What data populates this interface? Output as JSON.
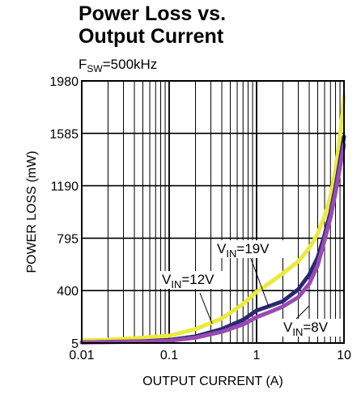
{
  "chart_data": {
    "type": "line",
    "title_lines": [
      "Power Loss vs.",
      "Output Current"
    ],
    "subtitle": {
      "prefix": "F",
      "subscript": "SW",
      "suffix": "=500kHz"
    },
    "xlabel": "OUTPUT CURRENT (A)",
    "ylabel": "POWER LOSS (mW)",
    "x_scale": "log",
    "xlim": [
      0.01,
      10
    ],
    "ylim": [
      5,
      1980
    ],
    "x_ticks": [
      {
        "value": 0.01,
        "label": "0.01"
      },
      {
        "value": 0.1,
        "label": "0.1"
      },
      {
        "value": 1,
        "label": "1"
      },
      {
        "value": 10,
        "label": "10"
      }
    ],
    "y_ticks": [
      {
        "value": 5,
        "label": "5"
      },
      {
        "value": 400,
        "label": "400"
      },
      {
        "value": 795,
        "label": "795"
      },
      {
        "value": 1190,
        "label": "1190"
      },
      {
        "value": 1585,
        "label": "1585"
      },
      {
        "value": 1980,
        "label": "1980"
      }
    ],
    "grid": true,
    "series": [
      {
        "name": "V_IN=19V",
        "label": {
          "main": "V",
          "sub": "IN",
          "rest": "=19V"
        },
        "color": "#eaea3a",
        "x": [
          0.01,
          0.02,
          0.05,
          0.1,
          0.2,
          0.4,
          0.7,
          1.0,
          1.5,
          2.0,
          3.0,
          4.0,
          5.0,
          6.0,
          7.0,
          8.0,
          9.0,
          10.0
        ],
        "y": [
          25,
          30,
          45,
          60,
          110,
          190,
          300,
          390,
          470,
          530,
          620,
          720,
          830,
          960,
          1110,
          1310,
          1560,
          1860
        ]
      },
      {
        "name": "V_IN=12V",
        "label": {
          "main": "V",
          "sub": "IN",
          "rest": "=12V"
        },
        "color": "#2a2a72",
        "x": [
          0.01,
          0.05,
          0.1,
          0.2,
          0.4,
          0.7,
          1.0,
          1.5,
          2.0,
          3.0,
          4.0,
          5.0,
          6.0,
          7.0,
          8.0,
          9.0,
          10.0
        ],
        "y": [
          10,
          18,
          28,
          55,
          110,
          180,
          250,
          290,
          320,
          410,
          520,
          650,
          820,
          990,
          1180,
          1380,
          1560
        ]
      },
      {
        "name": "V_IN=8V",
        "label": {
          "main": "V",
          "sub": "IN",
          "rest": "=8V"
        },
        "color": "#9a4ab4",
        "x": [
          0.01,
          0.05,
          0.1,
          0.2,
          0.4,
          0.7,
          1.0,
          1.5,
          2.0,
          3.0,
          4.0,
          5.0,
          6.0,
          7.0,
          8.0,
          9.0,
          10.0
        ],
        "y": [
          10,
          15,
          22,
          45,
          90,
          145,
          200,
          245,
          280,
          350,
          450,
          590,
          780,
          950,
          1140,
          1330,
          1500
        ]
      }
    ]
  }
}
